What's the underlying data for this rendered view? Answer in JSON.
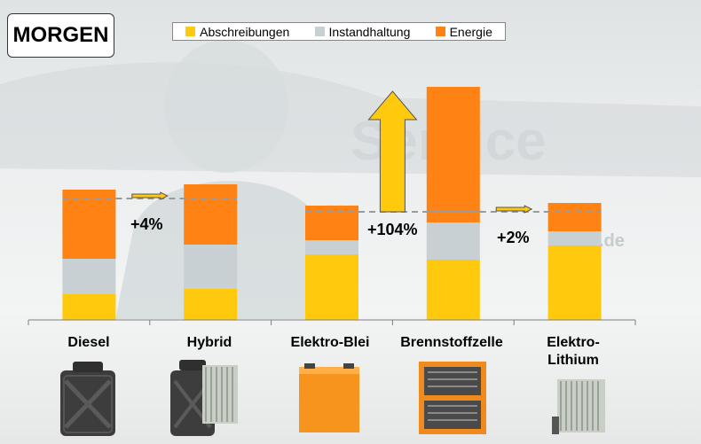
{
  "title": "MORGEN",
  "legend": {
    "items": [
      {
        "label": "Abschreibungen",
        "color": "#ffc90e"
      },
      {
        "label": "Instandhaltung",
        "color": "#c8d0d3"
      },
      {
        "label": "Energie",
        "color": "#ff8214"
      }
    ]
  },
  "background": {
    "watermark_text": "Service",
    "watermark_domain": ".de"
  },
  "chart_data": {
    "type": "bar",
    "stacked": true,
    "categories": [
      "Diesel",
      "Hybrid",
      "Elektro-Blei",
      "Brennstoffzelle",
      "Elektro-Lithium"
    ],
    "category_labels": [
      [
        "Diesel"
      ],
      [
        "Hybrid"
      ],
      [
        "Elektro-Blei"
      ],
      [
        "Brennstoffzelle"
      ],
      [
        "Elektro-",
        "Lithium"
      ]
    ],
    "series": [
      {
        "name": "Abschreibungen",
        "color": "#ffc90e",
        "values": [
          29,
          35,
          74,
          68,
          84
        ]
      },
      {
        "name": "Instandhaltung",
        "color": "#c8d0d3",
        "values": [
          40,
          50,
          16,
          42,
          16
        ]
      },
      {
        "name": "Energie",
        "color": "#ff8214",
        "values": [
          78,
          68,
          39,
          153,
          32
        ]
      }
    ],
    "reference_levels": [
      {
        "from": "Diesel",
        "to": "Hybrid",
        "value": 137
      },
      {
        "from": "Elektro-Blei",
        "to": "Brennstoffzelle",
        "value": 122
      },
      {
        "from": "Brennstoffzelle",
        "to": "Elektro-Lithium",
        "value": 122
      }
    ],
    "annotations": [
      {
        "text": "+4%",
        "between": [
          "Diesel",
          "Hybrid"
        ],
        "arrow": "small"
      },
      {
        "text": "+104%",
        "between": [
          "Elektro-Blei",
          "Brennstoffzelle"
        ],
        "arrow": "large-up"
      },
      {
        "text": "+2%",
        "between": [
          "Brennstoffzelle",
          "Elektro-Lithium"
        ],
        "arrow": "small"
      }
    ],
    "icons": [
      "jerrycan-icon",
      "jerrycan-battery-icon",
      "lead-battery-icon",
      "fuel-cell-icon",
      "lithium-battery-icon"
    ],
    "ylim": [
      0,
      270
    ],
    "grid": false
  }
}
